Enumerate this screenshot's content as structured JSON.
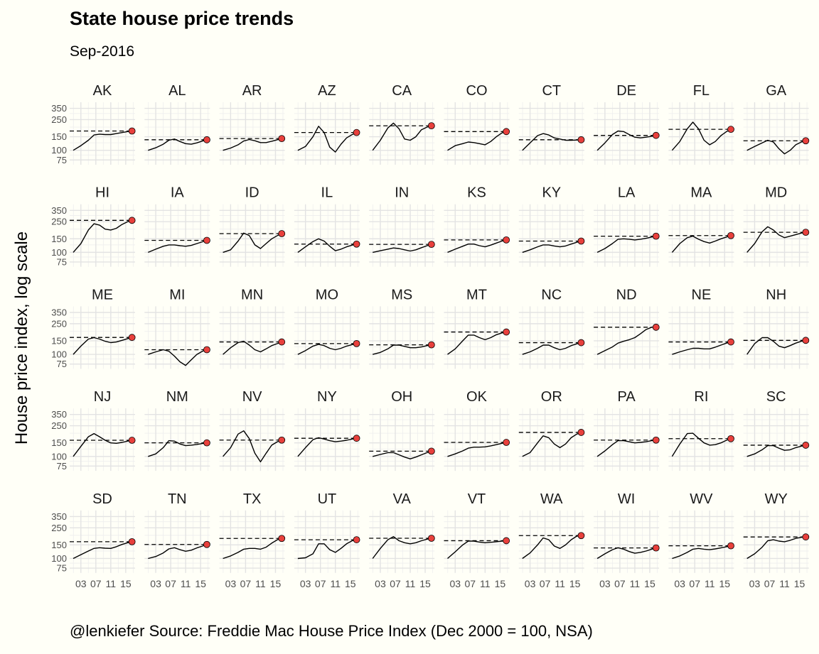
{
  "chart_data": {
    "type": "line",
    "title": "State house price trends",
    "subtitle": "Sep-2016",
    "ylabel": "House price index, log scale",
    "xlabel": "",
    "caption": "@lenkiefer Source: Freddie Mac House Price Index (Dec 2000 = 100, NSA)",
    "y_scale": "log",
    "ylim": [
      65,
      420
    ],
    "xlim": [
      2000,
      2017.5
    ],
    "y_ticks": [
      75,
      100,
      150,
      250,
      350
    ],
    "x_ticks": [
      2003,
      2007,
      2011,
      2015
    ],
    "x_tick_labels": [
      "03",
      "07",
      "11",
      "15"
    ],
    "grid": true,
    "line_color": "#000000",
    "point_color": "#e8403c",
    "reference_line": "dashed line at the latest (Sep-2016) value",
    "x": [
      2000.95,
      2003,
      2005,
      2006.5,
      2008,
      2009.5,
      2011,
      2012.5,
      2014,
      2015.5,
      2016.67
    ],
    "series": [
      {
        "name": "AK",
        "values": [
          100,
          115,
          135,
          158,
          162,
          160,
          160,
          165,
          170,
          175,
          178
        ]
      },
      {
        "name": "AL",
        "values": [
          100,
          108,
          120,
          135,
          140,
          130,
          122,
          120,
          125,
          132,
          137
        ]
      },
      {
        "name": "AR",
        "values": [
          100,
          107,
          118,
          132,
          138,
          133,
          126,
          126,
          131,
          137,
          142
        ]
      },
      {
        "name": "AZ",
        "values": [
          100,
          112,
          150,
          205,
          170,
          110,
          95,
          120,
          145,
          160,
          170
        ]
      },
      {
        "name": "CA",
        "values": [
          100,
          135,
          195,
          225,
          190,
          140,
          135,
          150,
          185,
          200,
          208
        ]
      },
      {
        "name": "CO",
        "values": [
          100,
          115,
          122,
          128,
          126,
          122,
          118,
          130,
          150,
          168,
          175
        ]
      },
      {
        "name": "CT",
        "values": [
          100,
          125,
          155,
          165,
          158,
          145,
          140,
          135,
          135,
          136,
          137
        ]
      },
      {
        "name": "DE",
        "values": [
          100,
          125,
          160,
          178,
          175,
          160,
          148,
          145,
          148,
          152,
          156
        ]
      },
      {
        "name": "FL",
        "values": [
          100,
          130,
          190,
          232,
          190,
          135,
          118,
          130,
          155,
          175,
          187
        ]
      },
      {
        "name": "GA",
        "values": [
          100,
          112,
          125,
          135,
          128,
          105,
          90,
          100,
          118,
          128,
          133
        ]
      },
      {
        "name": "HI",
        "values": [
          100,
          130,
          195,
          235,
          225,
          200,
          195,
          205,
          230,
          250,
          260
        ]
      },
      {
        "name": "IA",
        "values": [
          100,
          110,
          120,
          125,
          125,
          122,
          120,
          123,
          130,
          137,
          143
        ]
      },
      {
        "name": "ID",
        "values": [
          100,
          108,
          140,
          178,
          165,
          125,
          112,
          130,
          150,
          165,
          175
        ]
      },
      {
        "name": "IL",
        "values": [
          100,
          118,
          138,
          150,
          140,
          120,
          105,
          110,
          118,
          124,
          128
        ]
      },
      {
        "name": "IN",
        "values": [
          100,
          105,
          110,
          114,
          112,
          108,
          104,
          108,
          115,
          122,
          127
        ]
      },
      {
        "name": "KS",
        "values": [
          100,
          110,
          120,
          128,
          128,
          122,
          118,
          124,
          132,
          140,
          145
        ]
      },
      {
        "name": "KY",
        "values": [
          100,
          108,
          118,
          125,
          125,
          121,
          118,
          121,
          128,
          135,
          140
        ]
      },
      {
        "name": "LA",
        "values": [
          100,
          112,
          130,
          148,
          150,
          148,
          145,
          148,
          152,
          158,
          162
        ]
      },
      {
        "name": "MA",
        "values": [
          100,
          130,
          155,
          162,
          148,
          138,
          132,
          140,
          150,
          158,
          165
        ]
      },
      {
        "name": "MD",
        "values": [
          100,
          130,
          185,
          215,
          195,
          168,
          155,
          162,
          170,
          178,
          182
        ]
      },
      {
        "name": "ME",
        "values": [
          100,
          128,
          158,
          165,
          158,
          148,
          142,
          145,
          152,
          160,
          166
        ]
      },
      {
        "name": "MI",
        "values": [
          100,
          108,
          115,
          110,
          95,
          80,
          72,
          85,
          100,
          110,
          115
        ]
      },
      {
        "name": "MN",
        "values": [
          100,
          122,
          142,
          148,
          132,
          115,
          108,
          118,
          130,
          138,
          145
        ]
      },
      {
        "name": "MO",
        "values": [
          100,
          112,
          128,
          135,
          130,
          120,
          115,
          120,
          128,
          134,
          138
        ]
      },
      {
        "name": "MS",
        "values": [
          100,
          106,
          118,
          132,
          132,
          127,
          122,
          122,
          125,
          130,
          133
        ]
      },
      {
        "name": "MT",
        "values": [
          100,
          118,
          150,
          178,
          178,
          165,
          155,
          165,
          180,
          190,
          195
        ]
      },
      {
        "name": "NC",
        "values": [
          100,
          108,
          120,
          132,
          132,
          122,
          115,
          120,
          130,
          137,
          142
        ]
      },
      {
        "name": "ND",
        "values": [
          100,
          112,
          125,
          140,
          148,
          155,
          165,
          185,
          210,
          225,
          225
        ]
      },
      {
        "name": "NE",
        "values": [
          100,
          108,
          115,
          120,
          120,
          118,
          118,
          124,
          132,
          140,
          145
        ]
      },
      {
        "name": "NH",
        "values": [
          100,
          138,
          165,
          165,
          148,
          128,
          122,
          130,
          140,
          148,
          152
        ]
      },
      {
        "name": "NJ",
        "values": [
          100,
          135,
          180,
          198,
          180,
          162,
          150,
          148,
          152,
          158,
          162
        ]
      },
      {
        "name": "NM",
        "values": [
          100,
          108,
          130,
          160,
          158,
          145,
          138,
          140,
          143,
          147,
          150
        ]
      },
      {
        "name": "NV",
        "values": [
          100,
          130,
          195,
          215,
          170,
          110,
          85,
          110,
          140,
          155,
          163
        ]
      },
      {
        "name": "NY",
        "values": [
          100,
          130,
          165,
          175,
          168,
          160,
          155,
          158,
          162,
          168,
          172
        ]
      },
      {
        "name": "OH",
        "values": [
          100,
          106,
          112,
          112,
          105,
          98,
          93,
          98,
          105,
          112,
          117
        ]
      },
      {
        "name": "OK",
        "values": [
          100,
          108,
          118,
          128,
          132,
          132,
          133,
          137,
          142,
          148,
          152
        ]
      },
      {
        "name": "OR",
        "values": [
          100,
          112,
          150,
          185,
          175,
          145,
          130,
          145,
          175,
          195,
          205
        ]
      },
      {
        "name": "PA",
        "values": [
          100,
          118,
          142,
          160,
          160,
          155,
          150,
          152,
          155,
          160,
          163
        ]
      },
      {
        "name": "RI",
        "values": [
          100,
          145,
          198,
          200,
          172,
          150,
          140,
          142,
          150,
          162,
          170
        ]
      },
      {
        "name": "SC",
        "values": [
          100,
          108,
          122,
          138,
          138,
          128,
          120,
          122,
          130,
          136,
          140
        ]
      },
      {
        "name": "SD",
        "values": [
          100,
          112,
          125,
          135,
          138,
          136,
          135,
          142,
          152,
          160,
          165
        ]
      },
      {
        "name": "TN",
        "values": [
          100,
          106,
          118,
          133,
          138,
          130,
          124,
          128,
          137,
          145,
          152
        ]
      },
      {
        "name": "TX",
        "values": [
          100,
          108,
          120,
          132,
          135,
          135,
          132,
          140,
          158,
          175,
          182
        ]
      },
      {
        "name": "UT",
        "values": [
          100,
          102,
          115,
          155,
          155,
          130,
          120,
          135,
          155,
          170,
          175
        ]
      },
      {
        "name": "VA",
        "values": [
          100,
          135,
          175,
          192,
          170,
          160,
          155,
          160,
          170,
          178,
          183
        ]
      },
      {
        "name": "VT",
        "values": [
          100,
          122,
          150,
          168,
          168,
          163,
          160,
          162,
          165,
          168,
          170
        ]
      },
      {
        "name": "WA",
        "values": [
          100,
          118,
          150,
          185,
          175,
          145,
          135,
          150,
          175,
          195,
          198
        ]
      },
      {
        "name": "WI",
        "values": [
          100,
          115,
          130,
          138,
          132,
          123,
          117,
          120,
          125,
          132,
          137
        ]
      },
      {
        "name": "WV",
        "values": [
          100,
          108,
          120,
          132,
          135,
          132,
          130,
          133,
          137,
          142,
          146
        ]
      },
      {
        "name": "WY",
        "values": [
          100,
          115,
          140,
          170,
          175,
          168,
          165,
          172,
          182,
          188,
          190
        ]
      }
    ]
  }
}
